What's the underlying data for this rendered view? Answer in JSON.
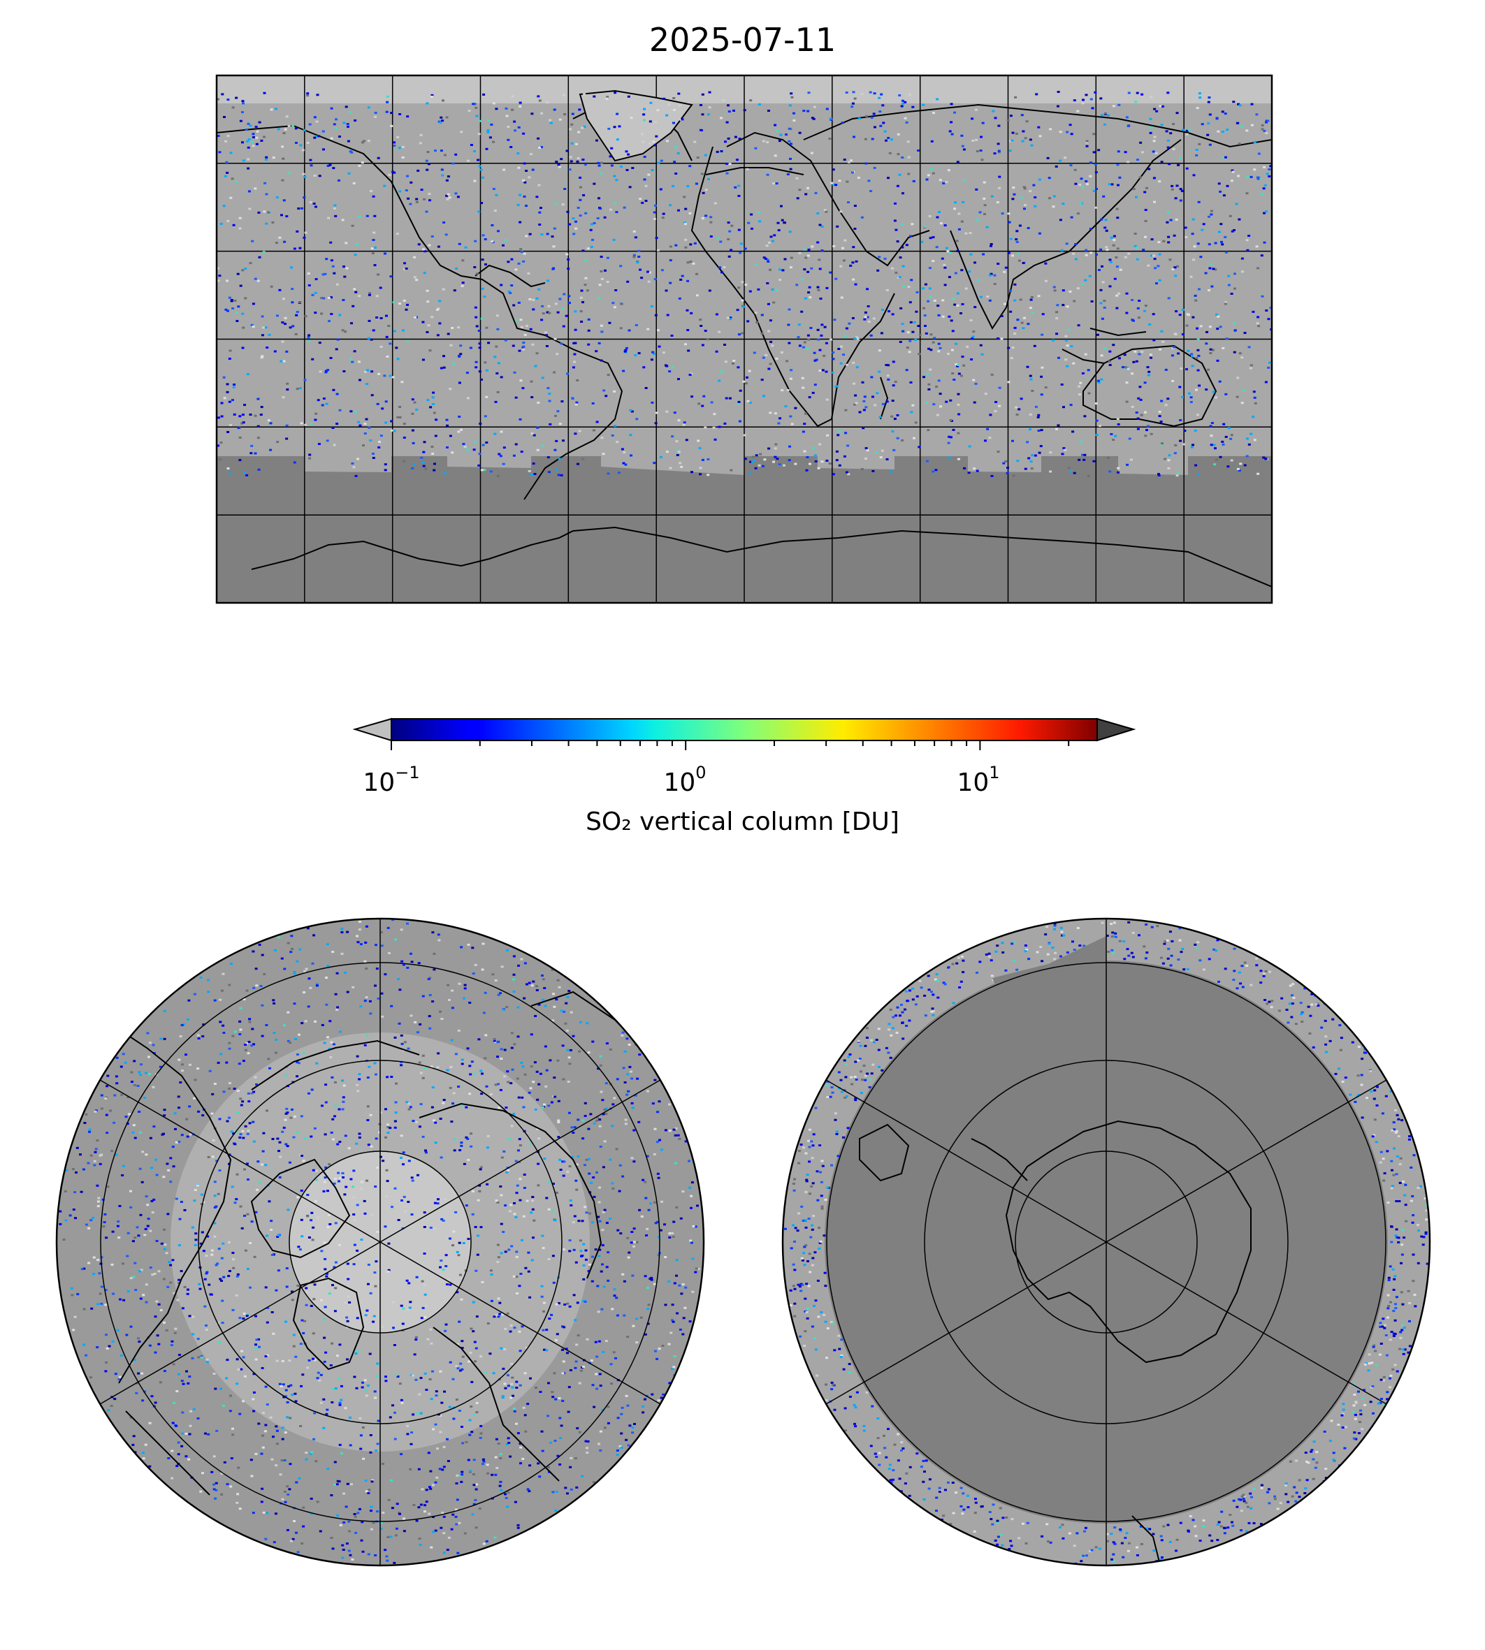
{
  "title": "2025-07-11",
  "colorbar": {
    "label": "SO₂ vertical column [DU]",
    "scale": "log",
    "colormap": "jet",
    "min_exponent": -1,
    "max_value": 25,
    "extend": "both",
    "under_color": "#c0c0c0",
    "over_color": "#404040",
    "ticks": [
      {
        "base": "10",
        "exp": "−1",
        "value": 0.1
      },
      {
        "base": "10",
        "exp": "0",
        "value": 1
      },
      {
        "base": "10",
        "exp": "1",
        "value": 10
      }
    ]
  },
  "maps": {
    "global": {
      "projection": "equirectangular",
      "background": "#808080",
      "gridline_color": "#000000"
    },
    "north_polar": {
      "projection": "north-polar-stereographic",
      "background": "#9a9a9a"
    },
    "south_polar": {
      "projection": "south-polar-stereographic",
      "background": "#808080"
    }
  }
}
